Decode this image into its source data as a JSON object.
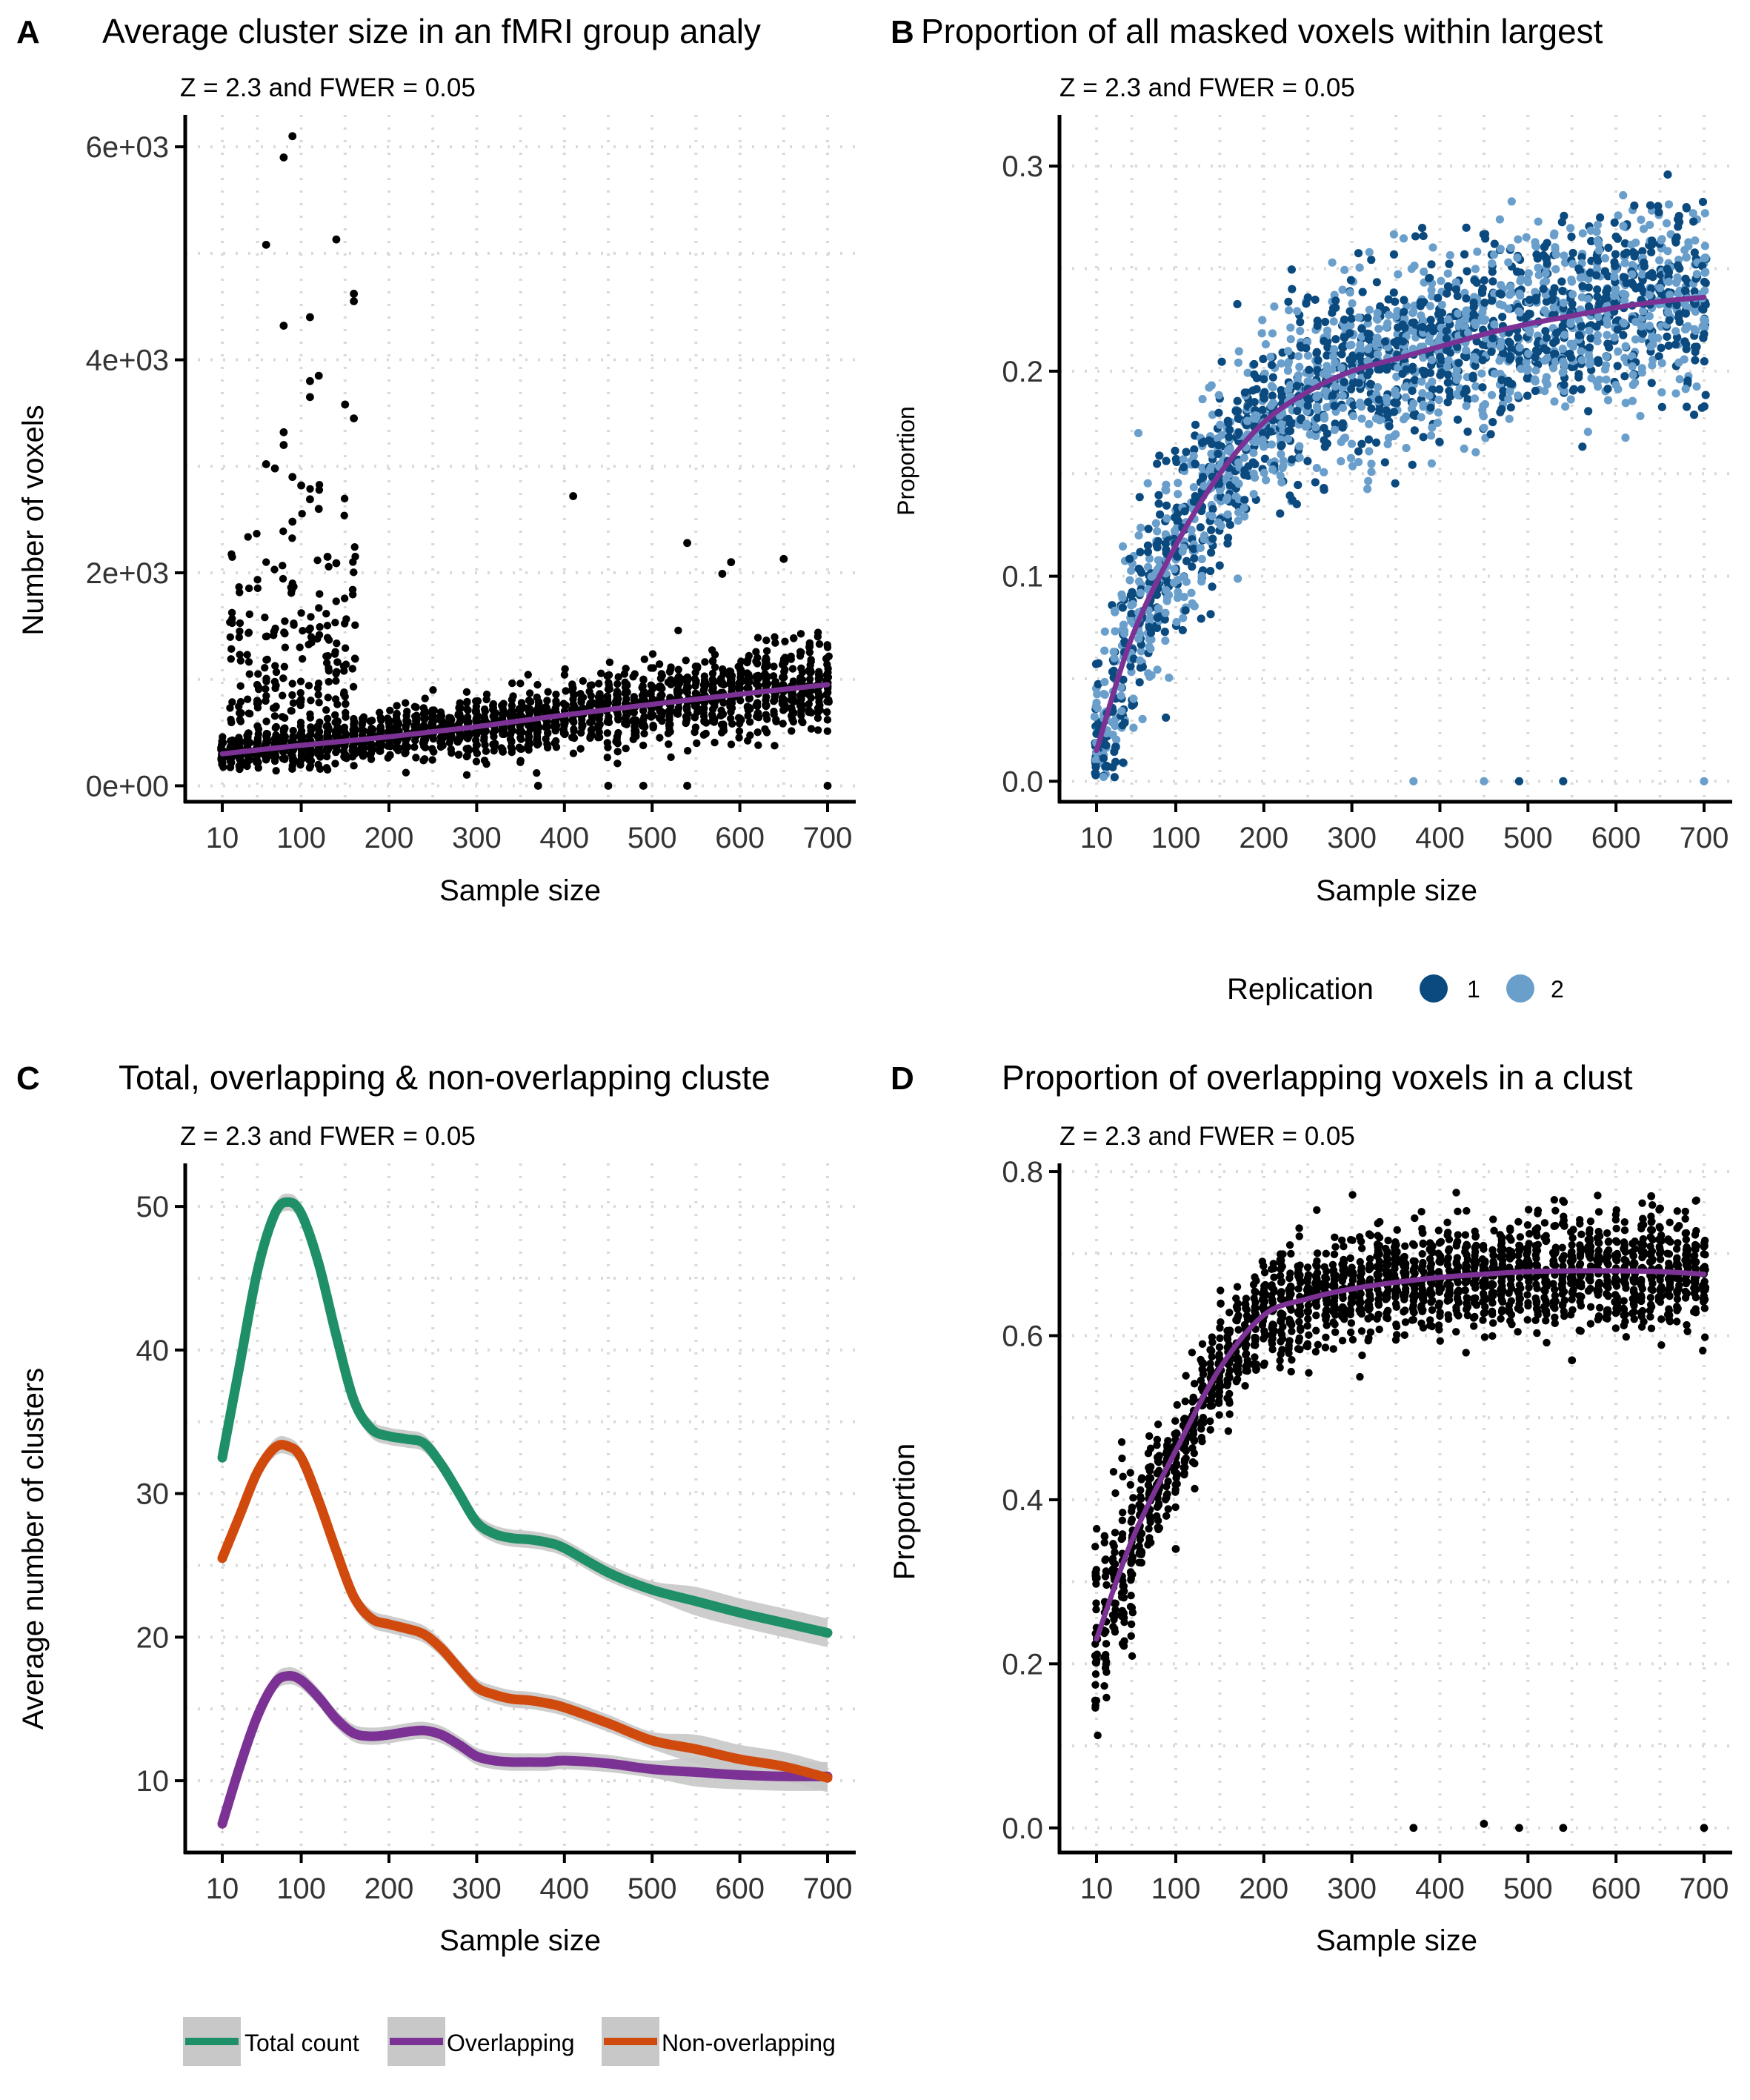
{
  "colors": {
    "black": "#000000",
    "purple": "#7B3294",
    "rep1": "#0B4A7E",
    "rep2": "#6A9FCC",
    "green": "#1E8F66",
    "orange": "#D04A0E",
    "band": "#C8C8C8",
    "grid": "#D9D9D9"
  },
  "chart_data": [
    {
      "panel": "A",
      "type": "scatter",
      "title": "Average cluster size in an fMRI group analy",
      "subtitle": "Z = 2.3 and FWER = 0.05",
      "xlabel": "Sample size",
      "ylabel": "Number of voxels",
      "xlim": [
        -10,
        720
      ],
      "ylim": [
        -150,
        6300
      ],
      "xticks": [
        10,
        100,
        200,
        300,
        400,
        500,
        600,
        700
      ],
      "yticks": [
        0,
        2000,
        4000,
        6000
      ],
      "ytick_labels": [
        "0e+00",
        "2e+03",
        "4e+03",
        "6e+03"
      ],
      "grid": "dotted",
      "points_color": "#000000",
      "trend": {
        "color": "#7B3294",
        "x": [
          10,
          100,
          200,
          300,
          400,
          500,
          600,
          700
        ],
        "y": [
          300,
          380,
          460,
          555,
          665,
          765,
          860,
          950
        ]
      },
      "outliers": [
        {
          "x": 90,
          "y": 6100
        },
        {
          "x": 80,
          "y": 5900
        },
        {
          "x": 60,
          "y": 5080
        },
        {
          "x": 140,
          "y": 5130
        },
        {
          "x": 160,
          "y": 4620
        },
        {
          "x": 160,
          "y": 4550
        },
        {
          "x": 110,
          "y": 4400
        },
        {
          "x": 80,
          "y": 4320
        },
        {
          "x": 120,
          "y": 3850
        },
        {
          "x": 110,
          "y": 3800
        },
        {
          "x": 150,
          "y": 3580
        },
        {
          "x": 160,
          "y": 3450
        },
        {
          "x": 110,
          "y": 3650
        },
        {
          "x": 80,
          "y": 3320
        },
        {
          "x": 80,
          "y": 3200
        },
        {
          "x": 60,
          "y": 3020
        },
        {
          "x": 70,
          "y": 2980
        },
        {
          "x": 90,
          "y": 2900
        },
        {
          "x": 100,
          "y": 2820
        },
        {
          "x": 110,
          "y": 2690
        },
        {
          "x": 120,
          "y": 2600
        },
        {
          "x": 90,
          "y": 2480
        },
        {
          "x": 410,
          "y": 2720
        },
        {
          "x": 540,
          "y": 2280
        },
        {
          "x": 590,
          "y": 2100
        },
        {
          "x": 650,
          "y": 2130
        },
        {
          "x": 580,
          "y": 1990
        },
        {
          "x": 130,
          "y": 2150
        },
        {
          "x": 140,
          "y": 2090
        },
        {
          "x": 370,
          "y": 0
        },
        {
          "x": 450,
          "y": 0
        },
        {
          "x": 490,
          "y": 0
        },
        {
          "x": 540,
          "y": 0
        },
        {
          "x": 700,
          "y": 0
        }
      ]
    },
    {
      "panel": "B",
      "type": "scatter",
      "title": "Proportion of all masked voxels within largest",
      "subtitle": "Z = 2.3 and FWER = 0.05",
      "xlabel": "Sample size",
      "ylabel": "Proportion",
      "xlim": [
        -10,
        720
      ],
      "ylim": [
        -0.01,
        0.325
      ],
      "xticks": [
        10,
        100,
        200,
        300,
        400,
        500,
        600,
        700
      ],
      "yticks": [
        0.0,
        0.1,
        0.2,
        0.3
      ],
      "ytick_labels": [
        "0.0",
        "0.1",
        "0.2",
        "0.3"
      ],
      "grid": "dotted",
      "legend": {
        "title": "Replication",
        "position": "bottom",
        "items": [
          {
            "label": "1",
            "color": "#0B4A7E"
          },
          {
            "label": "2",
            "color": "#6A9FCC"
          }
        ]
      },
      "trend": {
        "color": "#7B3294",
        "x": [
          10,
          50,
          100,
          150,
          200,
          250,
          300,
          350,
          400,
          450,
          500,
          550,
          600,
          650,
          700
        ],
        "y": [
          0.015,
          0.07,
          0.115,
          0.15,
          0.175,
          0.19,
          0.2,
          0.206,
          0.212,
          0.218,
          0.223,
          0.227,
          0.231,
          0.234,
          0.236
        ]
      },
      "outliers": [
        {
          "x": 370,
          "y": 0.0,
          "rep": 2
        },
        {
          "x": 450,
          "y": 0.0,
          "rep": 2
        },
        {
          "x": 490,
          "y": 0.0,
          "rep": 1
        },
        {
          "x": 540,
          "y": 0.0,
          "rep": 1
        },
        {
          "x": 700,
          "y": 0.0,
          "rep": 2
        }
      ]
    },
    {
      "panel": "C",
      "type": "line",
      "title": "Total, overlapping & non-overlapping cluste",
      "subtitle": "Z = 2.3 and FWER = 0.05",
      "xlabel": "Sample size",
      "ylabel": "Average number of clusters",
      "xlim": [
        -10,
        720
      ],
      "ylim": [
        5,
        53
      ],
      "xticks": [
        10,
        100,
        200,
        300,
        400,
        500,
        600,
        700
      ],
      "yticks": [
        10,
        20,
        30,
        40,
        50
      ],
      "ytick_labels": [
        "10",
        "20",
        "30",
        "40",
        "50"
      ],
      "grid": "dotted",
      "legend": {
        "position": "bottom",
        "items": [
          {
            "label": "Total count",
            "color": "#1E8F66"
          },
          {
            "label": "Overlapping",
            "color": "#7B3294"
          },
          {
            "label": "Non-overlapping",
            "color": "#D04A0E"
          }
        ]
      },
      "x": [
        10,
        30,
        50,
        70,
        85,
        100,
        120,
        140,
        160,
        180,
        200,
        220,
        240,
        260,
        280,
        300,
        320,
        340,
        360,
        380,
        400,
        450,
        500,
        550,
        600,
        650,
        700
      ],
      "series": [
        {
          "name": "Total count",
          "color": "#1E8F66",
          "values": [
            32.5,
            39,
            45.5,
            49.5,
            50.3,
            49.5,
            46,
            41,
            36.5,
            34.5,
            34,
            33.8,
            33.5,
            32,
            30,
            28,
            27.2,
            26.9,
            26.8,
            26.6,
            26.2,
            24.5,
            23.3,
            22.5,
            21.7,
            21,
            20.3
          ]
        },
        {
          "name": "Overlapping",
          "color": "#7B3294",
          "values": [
            7,
            11,
            14.5,
            16.8,
            17.3,
            17,
            15.8,
            14.3,
            13.3,
            13.1,
            13.2,
            13.4,
            13.5,
            13.2,
            12.5,
            11.7,
            11.4,
            11.3,
            11.3,
            11.3,
            11.4,
            11.2,
            10.8,
            10.6,
            10.4,
            10.3,
            10.3
          ]
        },
        {
          "name": "Non-overlapping",
          "color": "#D04A0E",
          "values": [
            25.5,
            28.5,
            31.5,
            33.2,
            33.3,
            32.5,
            29.5,
            26,
            22.8,
            21.3,
            20.9,
            20.6,
            20.2,
            19.2,
            17.8,
            16.5,
            16,
            15.7,
            15.6,
            15.4,
            15.1,
            14,
            12.8,
            12.2,
            11.5,
            11,
            10.2
          ]
        }
      ]
    },
    {
      "panel": "D",
      "type": "scatter",
      "title": "Proportion of overlapping voxels in a clust",
      "subtitle": "Z = 2.3 and FWER = 0.05",
      "xlabel": "Sample size",
      "ylabel": "Proportion",
      "xlim": [
        -10,
        720
      ],
      "ylim": [
        -0.03,
        0.81
      ],
      "xticks": [
        10,
        100,
        200,
        300,
        400,
        500,
        600,
        700
      ],
      "yticks": [
        0.0,
        0.2,
        0.4,
        0.6,
        0.8
      ],
      "ytick_labels": [
        "0.0",
        "0.2",
        "0.4",
        "0.6",
        "0.8"
      ],
      "grid": "dotted",
      "points_color": "#000000",
      "trend": {
        "color": "#7B3294",
        "x": [
          10,
          50,
          100,
          150,
          200,
          250,
          300,
          350,
          400,
          450,
          500,
          550,
          600,
          650,
          700
        ],
        "y": [
          0.23,
          0.35,
          0.46,
          0.56,
          0.625,
          0.645,
          0.657,
          0.665,
          0.671,
          0.675,
          0.678,
          0.679,
          0.679,
          0.678,
          0.675
        ]
      },
      "outliers": [
        {
          "x": 370,
          "y": 0.0
        },
        {
          "x": 450,
          "y": 0.005
        },
        {
          "x": 490,
          "y": 0.0
        },
        {
          "x": 540,
          "y": 0.0
        },
        {
          "x": 700,
          "y": 0.0
        },
        {
          "x": 100,
          "y": 0.34
        },
        {
          "x": 640,
          "y": 0.77
        },
        {
          "x": 650,
          "y": 0.755
        },
        {
          "x": 550,
          "y": 0.57
        }
      ]
    }
  ]
}
